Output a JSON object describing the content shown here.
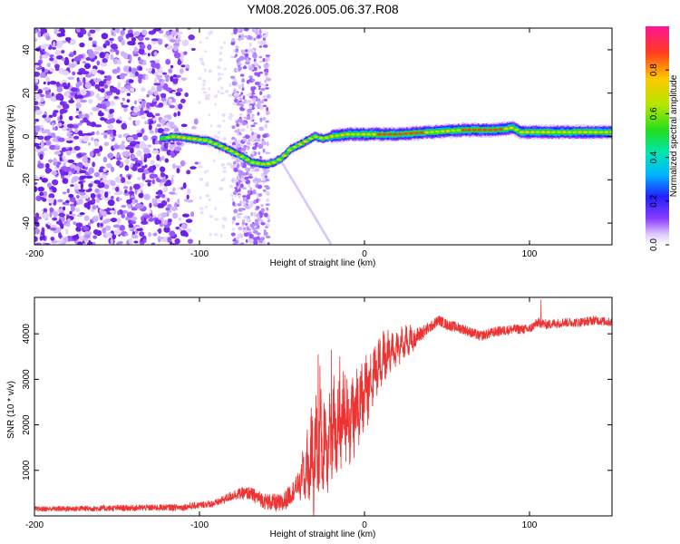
{
  "title": "YM08.2026.005.06.37.R08",
  "colorbar": {
    "label": "Normalized spectral amplitude",
    "range": [
      0,
      1
    ],
    "ticks": [
      "0.0",
      "0.2",
      "0.4",
      "0.6",
      "0.8"
    ],
    "tick_values": [
      0.0,
      0.2,
      0.4,
      0.6,
      0.8
    ]
  },
  "chart_data": [
    {
      "type": "heatmap",
      "name": "spectrogram",
      "xlabel": "Height of straight line (km)",
      "ylabel": "Frequency (Hz)",
      "xlim": [
        -200,
        150
      ],
      "ylim": [
        -50,
        50
      ],
      "xticks": [
        -200,
        -100,
        0,
        100
      ],
      "xtick_labels": [
        "-200",
        "-100",
        "0",
        "100"
      ],
      "yticks": [
        -40,
        -20,
        0,
        20,
        40
      ],
      "ytick_labels": [
        "-40",
        "-20",
        "0",
        "20",
        "40"
      ],
      "ridge": {
        "description": "dominant frequency ridge (Hz) versus height (km)",
        "x": [
          -123,
          -115,
          -105,
          -95,
          -85,
          -75,
          -68,
          -60,
          -55,
          -50,
          -45,
          -40,
          -35,
          -30,
          -25,
          -20,
          -10,
          0,
          10,
          20,
          40,
          60,
          80,
          90,
          95,
          100,
          110,
          130,
          150
        ],
        "y": [
          -1,
          0,
          -1,
          -2,
          -5,
          -9,
          -12,
          -13,
          -12,
          -10,
          -6,
          -4,
          -2,
          0,
          -1,
          0,
          1,
          1,
          1,
          1,
          2,
          3,
          3,
          4,
          2,
          2,
          2,
          2,
          2
        ]
      },
      "noise_region": [
        -200,
        -100
      ],
      "noise_band": [
        -80,
        -58
      ]
    },
    {
      "type": "line",
      "name": "snr",
      "xlabel": "Height of straight line (km)",
      "ylabel": "SNR (10 * v/v)",
      "xlim": [
        -200,
        150
      ],
      "ylim": [
        0,
        4800
      ],
      "xticks": [
        -200,
        -100,
        0,
        100
      ],
      "xtick_labels": [
        "-200",
        "-100",
        "0",
        "100"
      ],
      "yticks": [
        1000,
        2000,
        3000,
        4000
      ],
      "ytick_labels": [
        "1000",
        "2000",
        "3000",
        "4000"
      ],
      "color": "#ee3333",
      "trend": {
        "x": [
          -200,
          -150,
          -110,
          -90,
          -78,
          -70,
          -60,
          -50,
          -42,
          -35,
          -28,
          -20,
          -12,
          -5,
          0,
          5,
          10,
          20,
          30,
          40,
          45,
          50,
          60,
          70,
          80,
          90,
          100,
          105,
          110,
          120,
          130,
          140,
          150
        ],
        "y": [
          150,
          170,
          190,
          280,
          480,
          500,
          320,
          260,
          600,
          1000,
          1500,
          1800,
          2100,
          2300,
          2700,
          3100,
          3400,
          3700,
          3900,
          4150,
          4300,
          4200,
          4100,
          3950,
          4050,
          4100,
          4100,
          4250,
          4200,
          4250,
          4250,
          4300,
          4250
        ]
      },
      "noise": {
        "x": [
          -200,
          -90,
          -40,
          -30,
          0,
          20,
          40,
          150
        ],
        "y": [
          60,
          80,
          250,
          900,
          600,
          300,
          120,
          100
        ]
      },
      "spikes": {
        "x": [
          -28,
          -27,
          -20,
          -15,
          -12,
          107
        ],
        "y": [
          3550,
          3300,
          3650,
          3500,
          3100,
          4750
        ]
      }
    }
  ]
}
